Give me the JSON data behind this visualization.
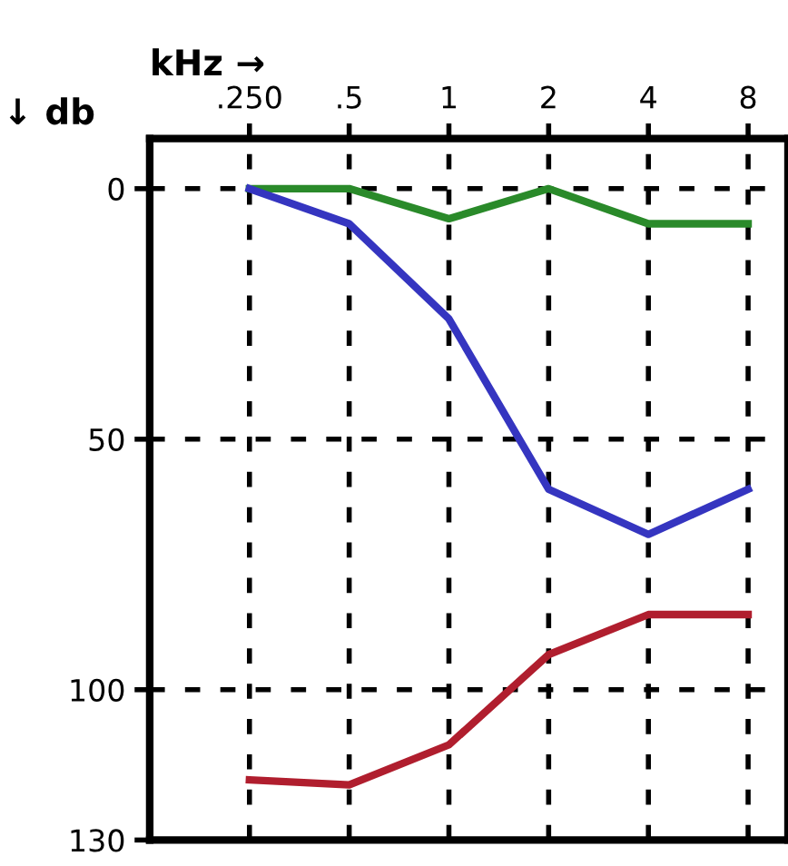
{
  "chart_data": {
    "type": "line",
    "xlabel": "kHz →",
    "ylabel": "↓ db",
    "categories": [
      ".250",
      ".5",
      "1",
      "2",
      "4",
      "8"
    ],
    "series": [
      {
        "color": "#2a8a2a",
        "values": [
          0,
          0,
          6,
          0,
          7,
          7
        ]
      },
      {
        "color": "#3535c0",
        "values": [
          0,
          7,
          26,
          60,
          69,
          60
        ]
      },
      {
        "color": "#b01e2e",
        "values": [
          118,
          119,
          111,
          93,
          85,
          85
        ]
      }
    ],
    "ylim": [
      130,
      -10
    ],
    "yticks": [
      0,
      50,
      100,
      130
    ],
    "grid": true,
    "line_style": "solid",
    "marker": "none"
  }
}
